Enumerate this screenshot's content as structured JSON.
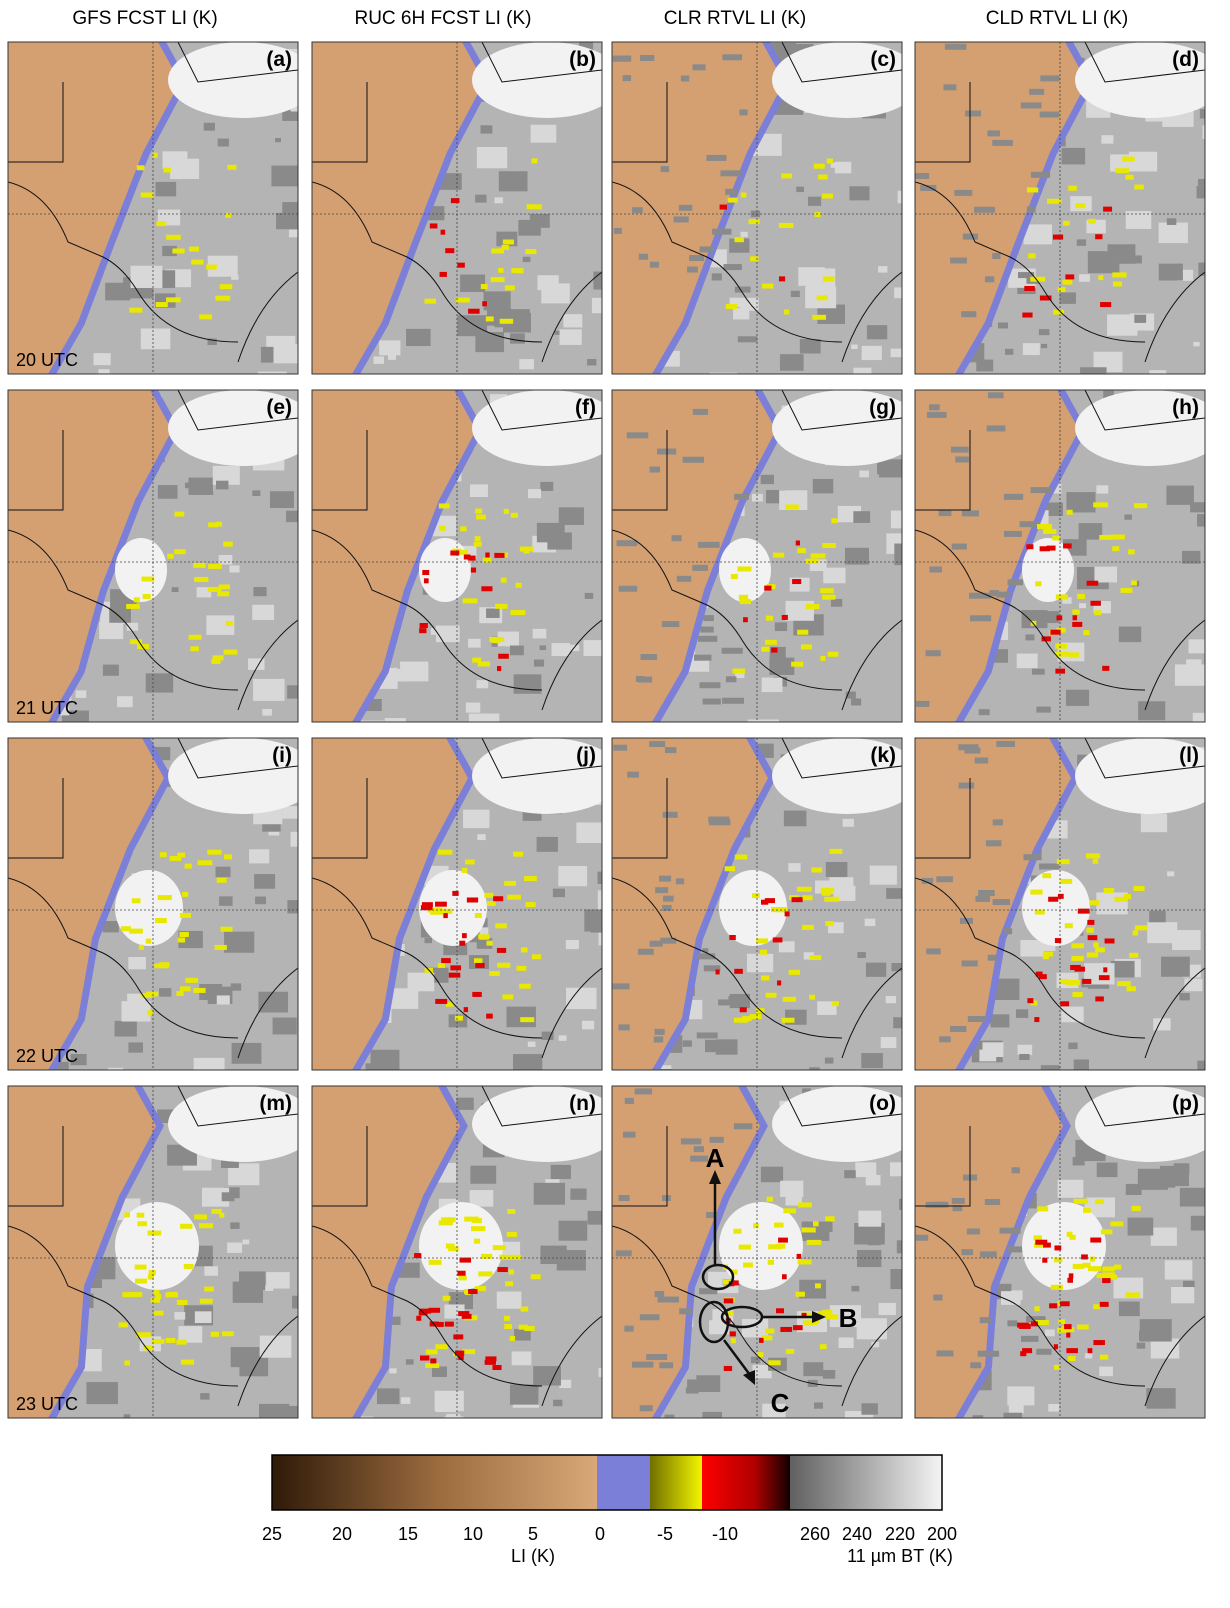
{
  "columns": [
    {
      "title": "GFS FCST LI (K)"
    },
    {
      "title": "RUC 6H FCST LI (K)"
    },
    {
      "title": "CLR RTVL LI (K)"
    },
    {
      "title": "CLD RTVL LI (K)"
    }
  ],
  "panels": [
    {
      "label": "(a)"
    },
    {
      "label": "(b)"
    },
    {
      "label": "(c)"
    },
    {
      "label": "(d)"
    },
    {
      "label": "(e)"
    },
    {
      "label": "(f)"
    },
    {
      "label": "(g)"
    },
    {
      "label": "(h)"
    },
    {
      "label": "(i)"
    },
    {
      "label": "(j)"
    },
    {
      "label": "(k)"
    },
    {
      "label": "(l)"
    },
    {
      "label": "(m)"
    },
    {
      "label": "(n)"
    },
    {
      "label": "(o)"
    },
    {
      "label": "(p)"
    }
  ],
  "times": [
    "20 UTC",
    "21 UTC",
    "22 UTC",
    "23 UTC"
  ],
  "annotations": [
    "A",
    "B",
    "C"
  ],
  "colorbar": {
    "li_ticks": [
      25,
      20,
      15,
      10,
      5,
      0,
      -5,
      -10
    ],
    "li_label": "LI (K)",
    "bt_ticks": [
      260,
      240,
      220,
      200
    ],
    "bt_label": "11 µm BT (K)"
  }
}
